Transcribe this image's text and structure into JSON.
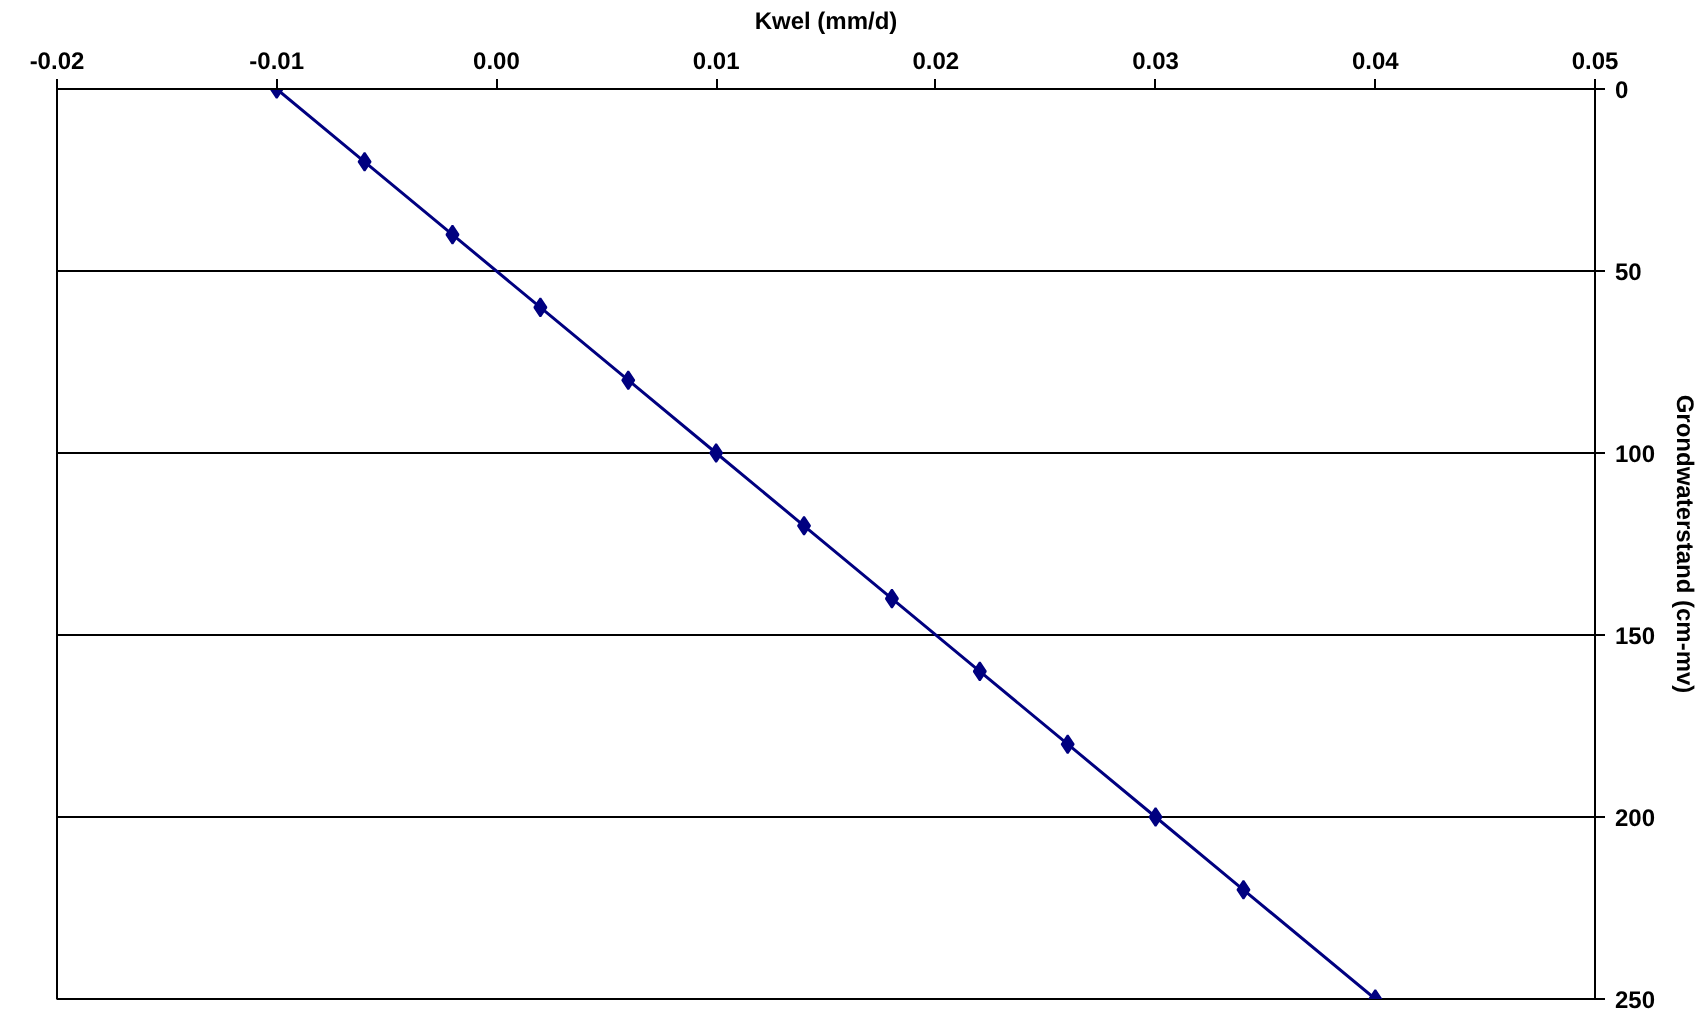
{
  "chart_data": {
    "type": "line",
    "xlabel": "Kwel (mm/d)",
    "ylabel": "Grondwaterstand (cm-mv)",
    "x": [
      -0.01,
      -0.006,
      -0.002,
      0.002,
      0.006,
      0.01,
      0.014,
      0.018,
      0.022,
      0.026,
      0.03,
      0.034,
      0.04
    ],
    "series": [
      {
        "color": "#000080",
        "values": [
          0,
          20,
          40,
          60,
          80,
          100,
          120,
          140,
          160,
          180,
          200,
          220,
          250
        ]
      }
    ],
    "xlim": [
      -0.02,
      0.05
    ],
    "xticks": [
      -0.02,
      -0.01,
      {
        "value": 0,
        "label": "0.00"
      },
      0.01,
      0.02,
      0.03,
      0.04,
      0.05
    ],
    "ylim": [
      250,
      0
    ],
    "yticks": [
      0,
      50,
      100,
      150,
      200,
      250
    ],
    "grid": "y",
    "marker": "diamond",
    "line_style": "solid"
  }
}
